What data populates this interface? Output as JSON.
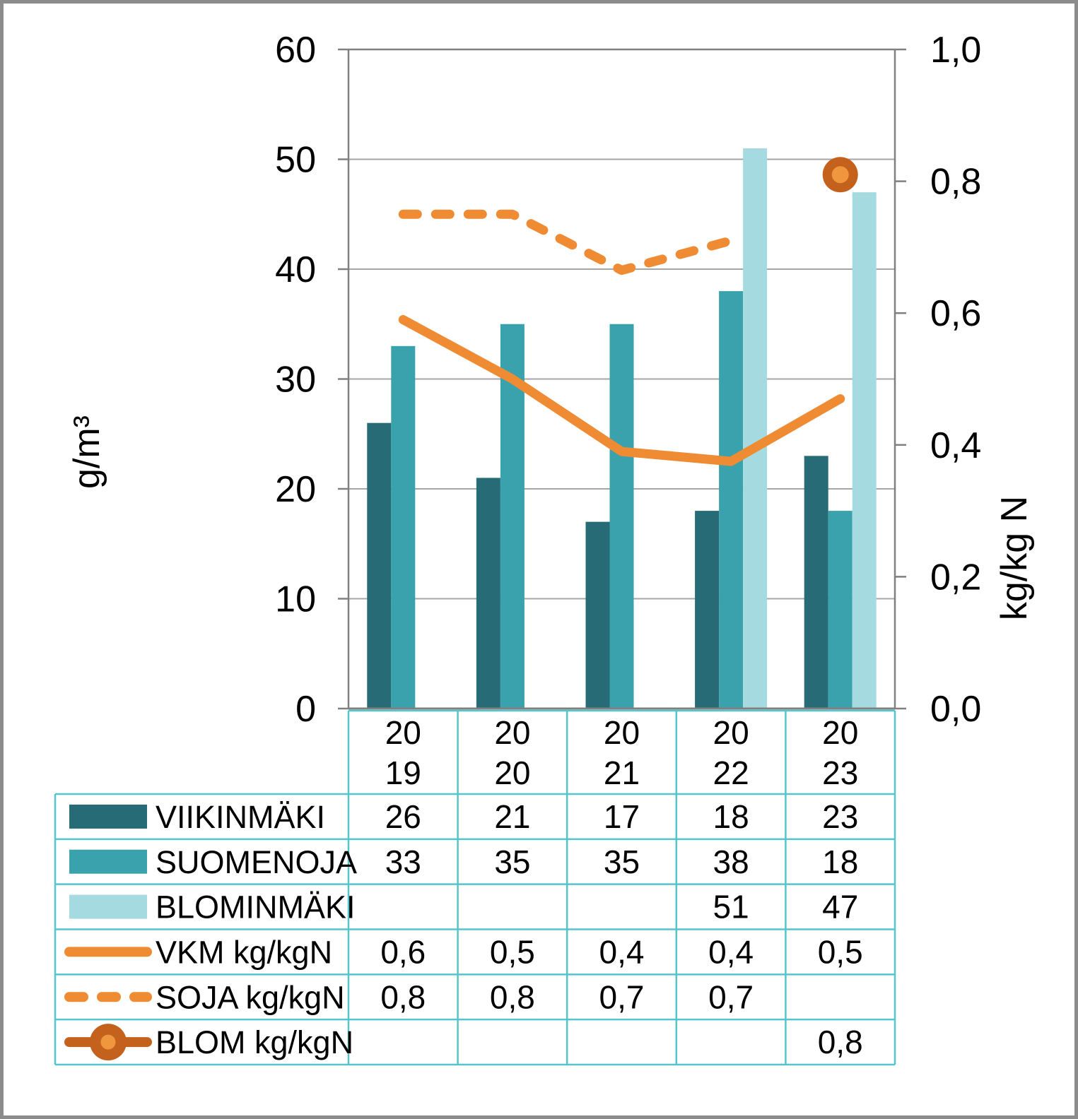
{
  "colors": {
    "viikinmaki": "#266B76",
    "suomenoja": "#3AA2AC",
    "blominmaki": "#A5DBE0",
    "orange": "#EE8B33",
    "dark_orange": "#C4611D",
    "marker_inner": "#F0963C",
    "gridline": "#A6A6A6",
    "axis": "#808080",
    "table_border": "#56C5CB",
    "frame": "#8C8C8C",
    "text": "#000000"
  },
  "chart_data": {
    "type": "combo-bar-line",
    "categories": [
      "2019",
      "2020",
      "2021",
      "2022",
      "2023"
    ],
    "left_axis": {
      "title": "g/m³",
      "min": 0,
      "max": 60,
      "tick_step": 10,
      "ticks": [
        "0",
        "10",
        "20",
        "30",
        "40",
        "50",
        "60"
      ]
    },
    "right_axis": {
      "title": "kg/kg N",
      "min": 0,
      "max": 1,
      "tick_step": 0.2,
      "ticks": [
        "0,0",
        "0,2",
        "0,4",
        "0,6",
        "0,8",
        "1,0"
      ]
    },
    "grid": "horizontal",
    "legend_position": "table-left",
    "bar_series": [
      {
        "name": "VIIKINMÄKI",
        "axis": "left",
        "color": "#266B76",
        "values": [
          26,
          21,
          17,
          18,
          23
        ]
      },
      {
        "name": "SUOMENOJA",
        "axis": "left",
        "color": "#3AA2AC",
        "values": [
          33,
          35,
          35,
          38,
          18
        ]
      },
      {
        "name": "BLOMINMÄKI",
        "axis": "left",
        "color": "#A5DBE0",
        "values": [
          null,
          null,
          null,
          51,
          47
        ]
      }
    ],
    "line_series": [
      {
        "name": "VKM kg/kgN",
        "axis": "right",
        "style": "solid",
        "color": "#EE8B33",
        "values": [
          0.59,
          0.5,
          0.39,
          0.375,
          0.47
        ]
      },
      {
        "name": "SOJA kg/kgN",
        "axis": "right",
        "style": "dashed",
        "color": "#EE8B33",
        "values": [
          0.75,
          0.75,
          0.665,
          0.71,
          null
        ]
      },
      {
        "name": "BLOM kg/kgN",
        "axis": "right",
        "style": "marker",
        "color": "#C4611D",
        "values": [
          null,
          null,
          null,
          null,
          0.81
        ]
      }
    ]
  },
  "table": {
    "header_years": [
      "2019",
      "2020",
      "2021",
      "2022",
      "2023"
    ],
    "rows": [
      {
        "label": "VIIKINMÄKI",
        "swatch": "bar",
        "color": "#266B76",
        "values": [
          "26",
          "21",
          "17",
          "18",
          "23"
        ]
      },
      {
        "label": "SUOMENOJA",
        "swatch": "bar",
        "color": "#3AA2AC",
        "values": [
          "33",
          "35",
          "35",
          "38",
          "18"
        ]
      },
      {
        "label": "BLOMINMÄKI",
        "swatch": "bar",
        "color": "#A5DBE0",
        "values": [
          "",
          "",
          "",
          "51",
          "47"
        ]
      },
      {
        "label": "VKM kg/kgN",
        "swatch": "line-solid",
        "color": "#EE8B33",
        "values": [
          "0,6",
          "0,5",
          "0,4",
          "0,4",
          "0,5"
        ]
      },
      {
        "label": "SOJA kg/kgN",
        "swatch": "line-dashed",
        "color": "#EE8B33",
        "values": [
          "0,8",
          "0,8",
          "0,7",
          "0,7",
          ""
        ]
      },
      {
        "label": "BLOM kg/kgN",
        "swatch": "line-marker",
        "color": "#C4611D",
        "values": [
          "",
          "",
          "",
          "",
          "0,8"
        ]
      }
    ]
  }
}
